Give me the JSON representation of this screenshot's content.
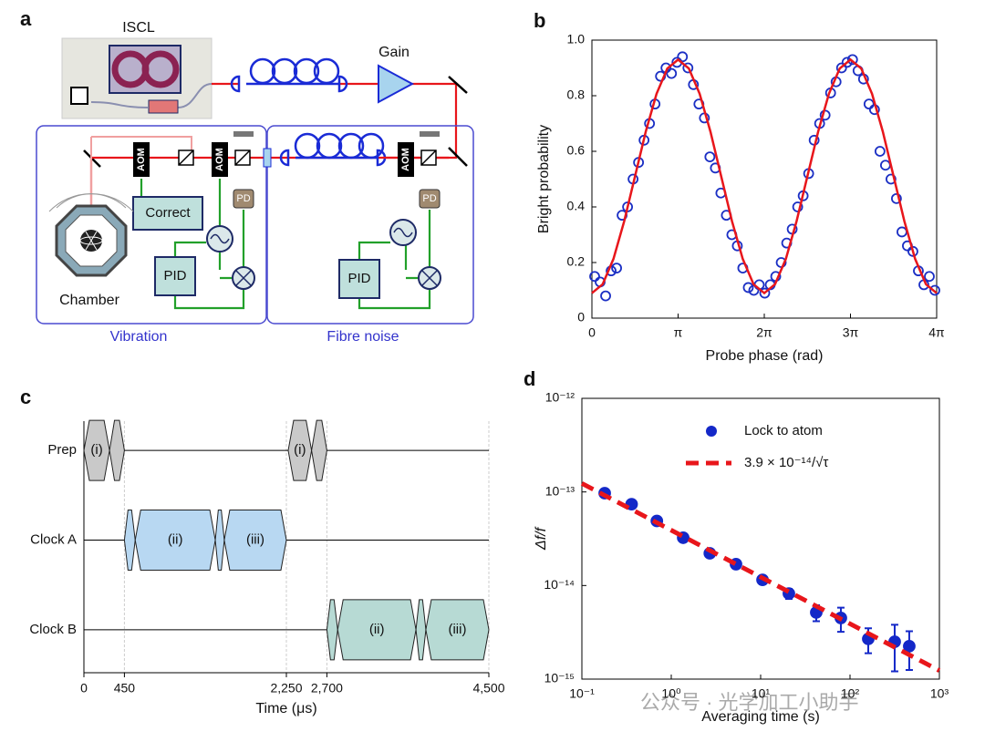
{
  "diagram": {
    "label": "a",
    "labels": [
      "ISCL",
      "Gain",
      "AOM",
      "AOM",
      "AOM",
      "Correct",
      "PD",
      "PD",
      "PID",
      "PID",
      "Chamber",
      "Vibration",
      "Fibre noise"
    ]
  },
  "watermark": "公众号 · 光学加工小助手",
  "chart_data": [
    {
      "type": "xy",
      "label": "b",
      "xlabel": "Probe phase (rad)",
      "ylabel": "Bright probability",
      "xlim": [
        0,
        12.566
      ],
      "ylim": [
        0,
        1
      ],
      "xticks": [
        0,
        {
          "value": 3.1416,
          "label": "π"
        },
        {
          "value": 6.2832,
          "label": "2π"
        },
        {
          "value": 9.4248,
          "label": "3π"
        },
        {
          "value": 12.566,
          "label": "4π"
        }
      ],
      "yticks": [
        0,
        0.2,
        0.4,
        0.6,
        0.8,
        {
          "value": 1,
          "label": "1.0"
        }
      ],
      "series": [
        {
          "color": "#1b2fc4",
          "marker": "open-circle",
          "x": [
            0.1,
            0.3,
            0.5,
            0.7,
            0.9,
            1.1,
            1.3,
            1.5,
            1.7,
            1.9,
            2.1,
            2.3,
            2.5,
            2.7,
            2.9,
            3.1,
            3.3,
            3.5,
            3.7,
            3.9,
            4.1,
            4.3,
            4.5,
            4.7,
            4.9,
            5.1,
            5.3,
            5.5,
            5.7,
            5.9,
            6.1,
            6.3,
            6.5,
            6.7,
            6.9,
            7.1,
            7.3,
            7.5,
            7.7,
            7.9,
            8.1,
            8.3,
            8.5,
            8.7,
            8.9,
            9.1,
            9.3,
            9.5,
            9.7,
            9.9,
            10.1,
            10.3,
            10.5,
            10.7,
            10.9,
            11.1,
            11.3,
            11.5,
            11.7,
            11.9,
            12.1,
            12.3,
            12.5
          ],
          "values": [
            0.15,
            0.13,
            0.08,
            0.17,
            0.18,
            0.37,
            0.4,
            0.5,
            0.56,
            0.64,
            0.7,
            0.77,
            0.87,
            0.9,
            0.88,
            0.92,
            0.94,
            0.9,
            0.84,
            0.77,
            0.72,
            0.58,
            0.54,
            0.45,
            0.37,
            0.3,
            0.26,
            0.18,
            0.11,
            0.1,
            0.12,
            0.09,
            0.12,
            0.15,
            0.2,
            0.27,
            0.32,
            0.4,
            0.44,
            0.52,
            0.64,
            0.7,
            0.73,
            0.81,
            0.85,
            0.9,
            0.92,
            0.93,
            0.89,
            0.86,
            0.77,
            0.75,
            0.6,
            0.55,
            0.5,
            0.43,
            0.31,
            0.26,
            0.24,
            0.17,
            0.12,
            0.15,
            0.1
          ]
        },
        {
          "color": "#e8161b",
          "style": "line",
          "x": [
            0,
            0.393,
            0.785,
            1.178,
            1.571,
            1.963,
            2.356,
            2.749,
            3.142,
            3.534,
            3.927,
            4.32,
            4.712,
            5.105,
            5.498,
            5.89,
            6.283,
            6.676,
            7.069,
            7.461,
            7.854,
            8.247,
            8.639,
            9.032,
            9.425,
            9.817,
            10.21,
            10.603,
            10.996,
            11.388,
            11.781,
            12.174,
            12.566
          ],
          "values": [
            0.09,
            0.122,
            0.213,
            0.349,
            0.51,
            0.671,
            0.807,
            0.898,
            0.93,
            0.898,
            0.807,
            0.671,
            0.51,
            0.349,
            0.213,
            0.122,
            0.09,
            0.122,
            0.213,
            0.349,
            0.51,
            0.671,
            0.807,
            0.898,
            0.93,
            0.898,
            0.807,
            0.671,
            0.51,
            0.349,
            0.213,
            0.122,
            0.09
          ]
        }
      ]
    },
    {
      "type": "timeline",
      "label": "c",
      "xlabel": "Time (μs)",
      "xlim": [
        0,
        4500
      ],
      "xticks": [
        0,
        450,
        {
          "value": 2250,
          "label": "2,250"
        },
        {
          "value": 2700,
          "label": "2,700"
        },
        {
          "value": 4500,
          "label": "4,500"
        }
      ],
      "rows": [
        {
          "name": "Prep",
          "color": "#c9c9c9",
          "segments": [
            {
              "start": 0,
              "end": 285,
              "label": "(i)"
            },
            {
              "start": 285,
              "end": 450
            },
            {
              "start": 2270,
              "end": 2530,
              "label": "(i)"
            },
            {
              "start": 2530,
              "end": 2700
            }
          ]
        },
        {
          "name": "Clock A",
          "color": "#b8d8f2",
          "segments": [
            {
              "start": 450,
              "end": 570
            },
            {
              "start": 570,
              "end": 1460,
              "label": "(ii)"
            },
            {
              "start": 1460,
              "end": 1560
            },
            {
              "start": 1560,
              "end": 2250,
              "label": "(iii)"
            }
          ]
        },
        {
          "name": "Clock B",
          "color": "#b7dad4",
          "segments": [
            {
              "start": 2700,
              "end": 2820
            },
            {
              "start": 2820,
              "end": 3690,
              "label": "(ii)"
            },
            {
              "start": 3690,
              "end": 3800
            },
            {
              "start": 3800,
              "end": 4500,
              "label": "(iii)"
            }
          ]
        }
      ]
    },
    {
      "type": "xy",
      "label": "d",
      "xlabel": "Averaging time (s)",
      "ylabel": "Δf/f",
      "xlog": true,
      "ylog": true,
      "legend": "top-right",
      "xlim": [
        0.1,
        1000
      ],
      "ylim": [
        1e-15,
        1e-12
      ],
      "xticks": [
        {
          "value": 0.1,
          "label": "10⁻¹"
        },
        {
          "value": 1,
          "label": "10⁰"
        },
        {
          "value": 10,
          "label": "10¹"
        },
        {
          "value": 100,
          "label": "10²"
        },
        {
          "value": 1000,
          "label": "10³"
        }
      ],
      "yticks": [
        {
          "value": 1e-15,
          "label": "10⁻¹⁵"
        },
        {
          "value": 1e-14,
          "label": "10⁻¹⁴"
        },
        {
          "value": 1e-13,
          "label": "10⁻¹³"
        },
        {
          "value": 1e-12,
          "label": "10⁻¹²"
        }
      ],
      "series": [
        {
          "name": "Lock to atom",
          "color": "#1428c8",
          "marker": "filled-circle",
          "x": [
            0.18,
            0.36,
            0.69,
            1.36,
            2.7,
            5.3,
            10.5,
            20.7,
            41.9,
            79,
            160,
            316,
            460
          ],
          "values": [
            9.7e-14,
            7.4e-14,
            4.9e-14,
            3.24e-14,
            2.21e-14,
            1.69e-14,
            1.15e-14,
            8.2e-15,
            5.15e-15,
            4.5e-15,
            2.69e-15,
            2.51e-15,
            2.25e-15
          ],
          "errors": [
            8e-15,
            6e-15,
            4e-15,
            3e-15,
            2e-15,
            1.6e-15,
            1.2e-15,
            1e-15,
            1e-15,
            1.3e-15,
            8e-16,
            1.3e-15,
            1e-15
          ]
        },
        {
          "name": "3.9 × 10⁻¹⁴/√τ",
          "color": "#e8161b",
          "style": "dashed-line",
          "x": [
            0.1,
            1000
          ],
          "values": [
            1.233e-13,
            1.233e-15
          ]
        }
      ]
    }
  ]
}
